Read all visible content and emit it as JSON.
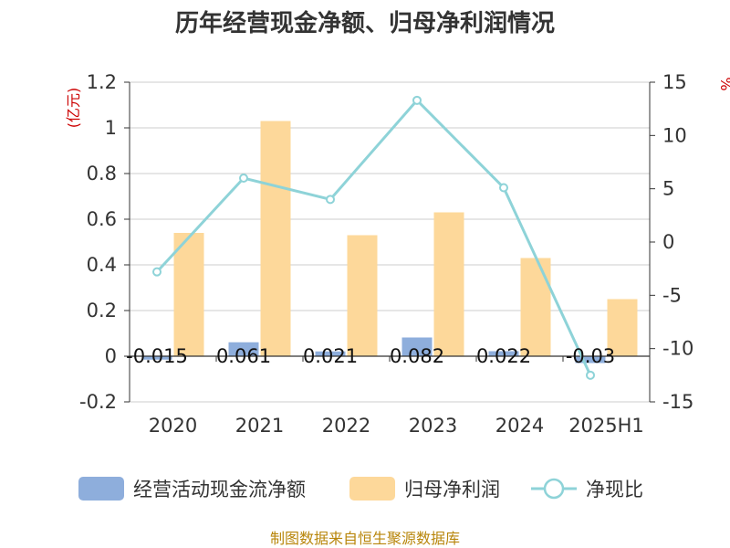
{
  "chart_data": {
    "type": "bar+line",
    "title": "历年经营现金净额、归母净利润情况",
    "categories": [
      "2020",
      "2021",
      "2022",
      "2023",
      "2024",
      "2025H1"
    ],
    "left_axis": {
      "unit": "(亿元)",
      "min": -0.2,
      "max": 1.2,
      "ticks": [
        "-0.2",
        "0",
        "0.2",
        "0.4",
        "0.6",
        "0.8",
        "1",
        "1.2"
      ],
      "tick_values": [
        -0.2,
        0,
        0.2,
        0.4,
        0.6,
        0.8,
        1.0,
        1.2
      ]
    },
    "right_axis": {
      "unit": "%",
      "min": -15,
      "max": 15,
      "ticks": [
        "-15",
        "-10",
        "-5",
        "0",
        "5",
        "10",
        "15"
      ],
      "tick_values": [
        -15,
        -10,
        -5,
        0,
        5,
        10,
        15
      ]
    },
    "series": [
      {
        "name": "经营活动现金流净额",
        "type": "bar",
        "axis": "left",
        "color": "#8eaedc",
        "values": [
          -0.015,
          0.061,
          0.021,
          0.082,
          0.022,
          -0.03
        ],
        "labels": [
          "-0.015",
          "0.061",
          "0.021",
          "0.082",
          "0.022",
          "-0.03"
        ]
      },
      {
        "name": "归母净利润",
        "type": "bar",
        "axis": "left",
        "color": "#fdd89a",
        "values": [
          0.54,
          1.03,
          0.53,
          0.63,
          0.43,
          0.25
        ]
      },
      {
        "name": "净现比",
        "type": "line",
        "axis": "right",
        "color": "#8ed3d8",
        "values": [
          -2.8,
          6.0,
          4.0,
          13.3,
          5.1,
          -12.5
        ]
      }
    ],
    "grid": true,
    "legend_position": "bottom"
  },
  "source_text": "制图数据来自恒生聚源数据库"
}
